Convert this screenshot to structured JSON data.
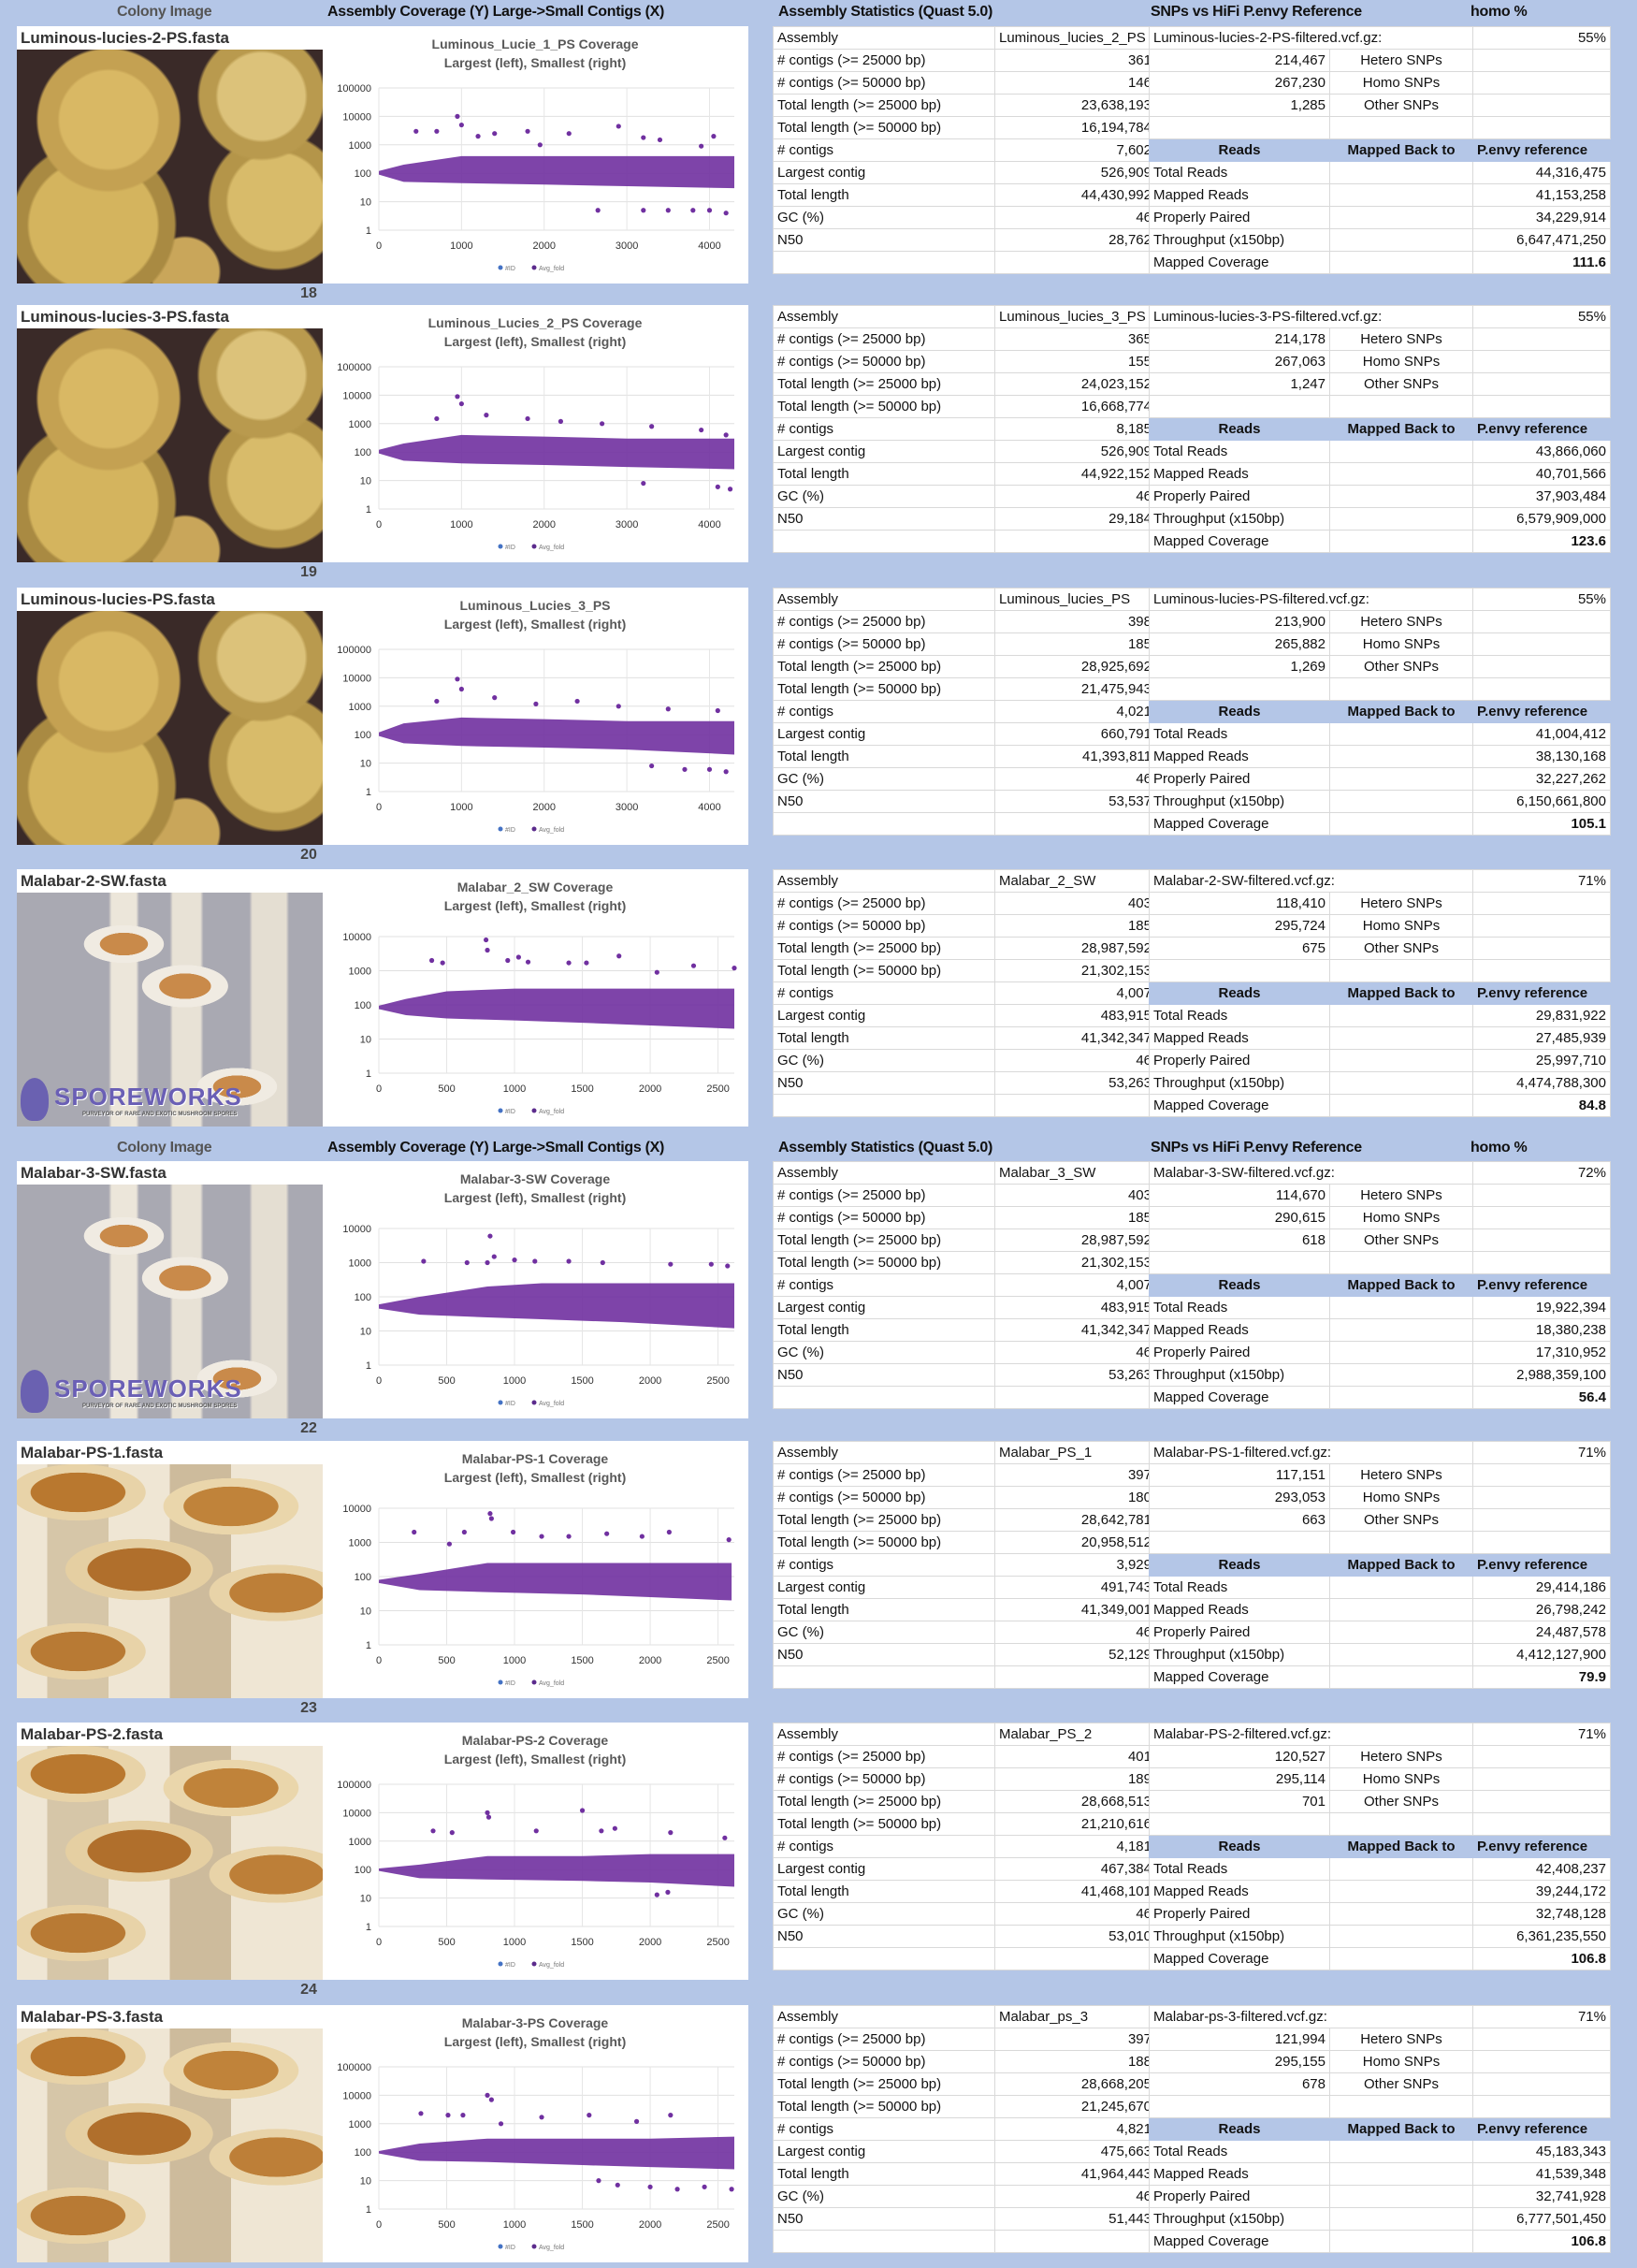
{
  "headers": {
    "colony_image": "Colony Image",
    "assembly_coverage": "Assembly Coverage (Y) Large->Small Contigs (X)",
    "assembly_statistics": "Assembly Statistics (Quast 5.0)",
    "snps_reference": "SNPs vs HiFi P.envy Reference",
    "homo_pct": "homo %"
  },
  "stat_labels": [
    "Assembly",
    "# contigs (>= 25000 bp)",
    "# contigs (>= 50000 bp)",
    "Total length (>= 25000 bp)",
    "Total length (>= 50000 bp)",
    "# contigs",
    "Largest contig",
    "Total length",
    "GC (%)",
    "N50"
  ],
  "snp_labels": {
    "hetero": "Hetero SNPs",
    "homo": "Homo SNPs",
    "other": "Other SNPs"
  },
  "reads_header": [
    "Reads",
    "Mapped Back to",
    "P.envy reference"
  ],
  "reads_labels": [
    "Total Reads",
    "Mapped Reads",
    "Properly Paired",
    "Throughput (x150bp)",
    "Mapped Coverage"
  ],
  "logo_text": {
    "name": "SPOREWORKS",
    "tagline": "PURVEYOR OF RARE AND EXOTIC MUSHROOM SPORES"
  },
  "colors": {
    "background": "#b4c6e7",
    "points": "#7030a0"
  },
  "panels": [
    {
      "file": "Luminous-lucies-2-PS.fasta",
      "photo": "luminous",
      "assembly": "Luminous_lucies_2_PS",
      "stats": [
        "361",
        "146",
        "23,638,193",
        "16,194,784",
        "7,602",
        "526,909",
        "44,430,992",
        "46",
        "28,762"
      ],
      "vcf": "Luminous-lucies-2-PS-filtered.vcf.gz:",
      "homo_pct": "55%",
      "hetero": "214,467",
      "homo": "267,230",
      "other": "1,285",
      "reads": [
        "44,316,475",
        "41,153,258",
        "34,229,914",
        "6,647,471,250",
        "111.6"
      ],
      "number": "18"
    },
    {
      "file": "Luminous-lucies-3-PS.fasta",
      "photo": "luminous",
      "assembly": "Luminous_lucies_3_PS",
      "stats": [
        "365",
        "155",
        "24,023,152",
        "16,668,774",
        "8,185",
        "526,909",
        "44,922,152",
        "46",
        "29,184"
      ],
      "vcf": "Luminous-lucies-3-PS-filtered.vcf.gz:",
      "homo_pct": "55%",
      "hetero": "214,178",
      "homo": "267,063",
      "other": "1,247",
      "reads": [
        "43,866,060",
        "40,701,566",
        "37,903,484",
        "6,579,909,000",
        "123.6"
      ],
      "number": "19"
    },
    {
      "file": "Luminous-lucies-PS.fasta",
      "photo": "luminous",
      "assembly": "Luminous_lucies_PS",
      "stats": [
        "398",
        "185",
        "28,925,692",
        "21,475,943",
        "4,021",
        "660,791",
        "41,393,811",
        "46",
        "53,537"
      ],
      "vcf": "Luminous-lucies-PS-filtered.vcf.gz:",
      "homo_pct": "55%",
      "hetero": "213,900",
      "homo": "265,882",
      "other": "1,269",
      "reads": [
        "41,004,412",
        "38,130,168",
        "32,227,262",
        "6,150,661,800",
        "105.1"
      ],
      "number": "20"
    },
    {
      "file": "Malabar-2-SW.fasta",
      "photo": "malabar-sw",
      "assembly": "Malabar_2_SW",
      "stats": [
        "403",
        "185",
        "28,987,592",
        "21,302,153",
        "4,007",
        "483,915",
        "41,342,347",
        "46",
        "53,263"
      ],
      "vcf": "Malabar-2-SW-filtered.vcf.gz:",
      "homo_pct": "71%",
      "hetero": "118,410",
      "homo": "295,724",
      "other": "675",
      "reads": [
        "29,831,922",
        "27,485,939",
        "25,997,710",
        "4,474,788,300",
        "84.8"
      ],
      "number": ""
    },
    {
      "file": "Malabar-3-SW.fasta",
      "photo": "malabar-sw",
      "assembly": "Malabar_3_SW",
      "stats": [
        "403",
        "185",
        "28,987,592",
        "21,302,153",
        "4,007",
        "483,915",
        "41,342,347",
        "46",
        "53,263"
      ],
      "vcf": "Malabar-3-SW-filtered.vcf.gz:",
      "homo_pct": "72%",
      "hetero": "114,670",
      "homo": "290,615",
      "other": "618",
      "reads": [
        "19,922,394",
        "18,380,238",
        "17,310,952",
        "2,988,359,100",
        "56.4"
      ],
      "number": "22"
    },
    {
      "file": "Malabar-PS-1.fasta",
      "photo": "malabar-ps",
      "assembly": "Malabar_PS_1",
      "stats": [
        "397",
        "180",
        "28,642,781",
        "20,958,512",
        "3,929",
        "491,743",
        "41,349,001",
        "46",
        "52,129"
      ],
      "vcf": "Malabar-PS-1-filtered.vcf.gz:",
      "homo_pct": "71%",
      "hetero": "117,151",
      "homo": "293,053",
      "other": "663",
      "reads": [
        "29,414,186",
        "26,798,242",
        "24,487,578",
        "4,412,127,900",
        "79.9"
      ],
      "number": "23"
    },
    {
      "file": "Malabar-PS-2.fasta",
      "photo": "malabar-ps",
      "assembly": "Malabar_PS_2",
      "stats": [
        "401",
        "189",
        "28,668,513",
        "21,210,616",
        "4,181",
        "467,384",
        "41,468,101",
        "46",
        "53,010"
      ],
      "vcf": "Malabar-PS-2-filtered.vcf.gz:",
      "homo_pct": "71%",
      "hetero": "120,527",
      "homo": "295,114",
      "other": "701",
      "reads": [
        "42,408,237",
        "39,244,172",
        "32,748,128",
        "6,361,235,550",
        "106.8"
      ],
      "number": "24"
    },
    {
      "file": "Malabar-PS-3.fasta",
      "photo": "malabar-ps",
      "assembly": "Malabar_ps_3",
      "stats": [
        "397",
        "188",
        "28,668,205",
        "21,245,670",
        "4,821",
        "475,663",
        "41,964,443",
        "46",
        "51,443"
      ],
      "vcf": "Malabar-ps-3-filtered.vcf.gz:",
      "homo_pct": "71%",
      "hetero": "121,994",
      "homo": "295,155",
      "other": "678",
      "reads": [
        "45,183,343",
        "41,539,348",
        "32,741,928",
        "6,777,501,450",
        "106.8"
      ],
      "number": ""
    }
  ],
  "chart_data": [
    {
      "type": "scatter",
      "title": "Luminous_Lucie_1_PS Coverage",
      "subtitle": "Largest (left), Smallest (right)",
      "yscale": "log",
      "ylim": [
        1,
        100000
      ],
      "yticks": [
        "1",
        "10",
        "100",
        "1000",
        "10000",
        "100000"
      ],
      "xlim": [
        0,
        4300
      ],
      "xticks": [
        "0",
        "1000",
        "2000",
        "3000",
        "4000"
      ],
      "grid": true,
      "legend": [
        "#ID",
        "Avg_fold"
      ],
      "legend_position": "bottom",
      "band": [
        [
          0,
          90,
          120
        ],
        [
          300,
          50,
          200
        ],
        [
          1000,
          45,
          400
        ],
        [
          2000,
          40,
          400
        ],
        [
          3000,
          35,
          400
        ],
        [
          4300,
          30,
          400
        ]
      ],
      "points": [
        [
          450,
          3000
        ],
        [
          700,
          3000
        ],
        [
          950,
          10000
        ],
        [
          1000,
          5000
        ],
        [
          1200,
          2000
        ],
        [
          1400,
          2500
        ],
        [
          1800,
          3000
        ],
        [
          1950,
          1000
        ],
        [
          2300,
          2500
        ],
        [
          2900,
          4500
        ],
        [
          3200,
          1800
        ],
        [
          3400,
          1500
        ],
        [
          3900,
          900
        ],
        [
          4050,
          2000
        ],
        [
          2650,
          5
        ],
        [
          3200,
          5
        ],
        [
          3500,
          5
        ],
        [
          3800,
          5
        ],
        [
          4000,
          5
        ],
        [
          4200,
          4
        ]
      ]
    },
    {
      "type": "scatter",
      "title": "Luminous_Lucies_2_PS Coverage",
      "subtitle": "Largest (left), Smallest (right)",
      "yscale": "log",
      "ylim": [
        1,
        100000
      ],
      "yticks": [
        "1",
        "10",
        "100",
        "1000",
        "10000",
        "100000"
      ],
      "xlim": [
        0,
        4300
      ],
      "xticks": [
        "0",
        "1000",
        "2000",
        "3000",
        "4000"
      ],
      "grid": true,
      "legend": [
        "#ID",
        "Avg_fold"
      ],
      "legend_position": "bottom",
      "band": [
        [
          0,
          90,
          120
        ],
        [
          300,
          50,
          200
        ],
        [
          1000,
          40,
          400
        ],
        [
          2000,
          35,
          350
        ],
        [
          3000,
          30,
          300
        ],
        [
          4300,
          25,
          300
        ]
      ],
      "points": [
        [
          950,
          9000
        ],
        [
          1000,
          5000
        ],
        [
          700,
          1500
        ],
        [
          1300,
          2000
        ],
        [
          1800,
          1500
        ],
        [
          2200,
          1200
        ],
        [
          2700,
          1000
        ],
        [
          3300,
          800
        ],
        [
          3900,
          600
        ],
        [
          4200,
          400
        ],
        [
          3200,
          8
        ],
        [
          4100,
          6
        ],
        [
          4250,
          5
        ]
      ]
    },
    {
      "type": "scatter",
      "title": "Luminous_Lucies_3_PS",
      "subtitle": "Largest (left), Smallest (right)",
      "yscale": "log",
      "ylim": [
        1,
        100000
      ],
      "yticks": [
        "1",
        "10",
        "100",
        "1000",
        "10000",
        "100000"
      ],
      "xlim": [
        0,
        4300
      ],
      "xticks": [
        "0",
        "1000",
        "2000",
        "3000",
        "4000"
      ],
      "grid": true,
      "legend": [
        "#ID",
        "Avg_fold"
      ],
      "legend_position": "bottom",
      "band": [
        [
          0,
          90,
          120
        ],
        [
          300,
          50,
          250
        ],
        [
          1000,
          40,
          400
        ],
        [
          2000,
          35,
          350
        ],
        [
          3000,
          30,
          300
        ],
        [
          4300,
          20,
          300
        ]
      ],
      "points": [
        [
          950,
          9000
        ],
        [
          1000,
          4000
        ],
        [
          700,
          1500
        ],
        [
          1400,
          2000
        ],
        [
          1900,
          1200
        ],
        [
          2400,
          1500
        ],
        [
          2900,
          1000
        ],
        [
          3500,
          800
        ],
        [
          4100,
          700
        ],
        [
          3300,
          8
        ],
        [
          3700,
          6
        ],
        [
          4000,
          6
        ],
        [
          4200,
          5
        ]
      ]
    },
    {
      "type": "scatter",
      "title": "Malabar_2_SW Coverage",
      "subtitle": "Largest (left), Smallest (right)",
      "yscale": "log",
      "ylim": [
        1,
        10000
      ],
      "yticks": [
        "1",
        "10",
        "100",
        "1000",
        "10000"
      ],
      "xlim": [
        0,
        2620
      ],
      "xticks": [
        "0",
        "500",
        "1000",
        "1500",
        "2000",
        "2500"
      ],
      "grid": true,
      "legend": [
        "#ID",
        "Avg_fold"
      ],
      "legend_position": "bottom",
      "band": [
        [
          0,
          75,
          95
        ],
        [
          200,
          50,
          150
        ],
        [
          500,
          40,
          250
        ],
        [
          1000,
          35,
          300
        ],
        [
          1500,
          30,
          300
        ],
        [
          2000,
          25,
          300
        ],
        [
          2620,
          20,
          300
        ]
      ],
      "points": [
        [
          390,
          2000
        ],
        [
          470,
          1700
        ],
        [
          790,
          8000
        ],
        [
          800,
          4000
        ],
        [
          950,
          2000
        ],
        [
          1030,
          2500
        ],
        [
          1100,
          1800
        ],
        [
          1400,
          1700
        ],
        [
          1530,
          1700
        ],
        [
          1770,
          2700
        ],
        [
          2050,
          900
        ],
        [
          2320,
          1400
        ],
        [
          2620,
          1200
        ]
      ]
    },
    {
      "type": "scatter",
      "title": "Malabar-3-SW Coverage",
      "subtitle": "Largest (left), Smallest (right)",
      "yscale": "log",
      "ylim": [
        1,
        10000
      ],
      "yticks": [
        "1",
        "10",
        "100",
        "1000",
        "10000"
      ],
      "xlim": [
        0,
        2620
      ],
      "xticks": [
        "0",
        "500",
        "1000",
        "1500",
        "2000",
        "2500"
      ],
      "grid": true,
      "legend": [
        "#ID",
        "Avg_fold"
      ],
      "legend_position": "bottom",
      "band": [
        [
          0,
          45,
          60
        ],
        [
          300,
          30,
          100
        ],
        [
          800,
          25,
          200
        ],
        [
          1200,
          22,
          250
        ],
        [
          1800,
          18,
          250
        ],
        [
          2620,
          12,
          250
        ]
      ],
      "points": [
        [
          330,
          1100
        ],
        [
          650,
          1000
        ],
        [
          800,
          1000
        ],
        [
          820,
          6000
        ],
        [
          850,
          1500
        ],
        [
          1000,
          1200
        ],
        [
          1150,
          1100
        ],
        [
          1400,
          1100
        ],
        [
          1650,
          1000
        ],
        [
          2150,
          900
        ],
        [
          2450,
          900
        ],
        [
          2570,
          800
        ]
      ]
    },
    {
      "type": "scatter",
      "title": "Malabar-PS-1 Coverage",
      "subtitle": "Largest (left), Smallest (right)",
      "yscale": "log",
      "ylim": [
        1,
        10000
      ],
      "yticks": [
        "1",
        "10",
        "100",
        "1000",
        "10000"
      ],
      "xlim": [
        0,
        2620
      ],
      "xticks": [
        "0",
        "500",
        "1000",
        "1500",
        "2000",
        "2500"
      ],
      "grid": true,
      "legend": [
        "#ID",
        "Avg_fold"
      ],
      "legend_position": "bottom",
      "band": [
        [
          0,
          65,
          80
        ],
        [
          300,
          40,
          120
        ],
        [
          800,
          35,
          250
        ],
        [
          1500,
          30,
          250
        ],
        [
          2000,
          25,
          250
        ],
        [
          2600,
          20,
          250
        ]
      ],
      "points": [
        [
          260,
          2000
        ],
        [
          520,
          900
        ],
        [
          630,
          2000
        ],
        [
          820,
          7000
        ],
        [
          830,
          5000
        ],
        [
          990,
          2000
        ],
        [
          1200,
          1500
        ],
        [
          1400,
          1500
        ],
        [
          1680,
          1800
        ],
        [
          1940,
          1500
        ],
        [
          2140,
          2000
        ],
        [
          2580,
          1200
        ]
      ]
    },
    {
      "type": "scatter",
      "title": "Malabar-PS-2 Coverage",
      "subtitle": "Largest (left), Smallest (right)",
      "yscale": "log",
      "ylim": [
        1,
        100000
      ],
      "yticks": [
        "1",
        "10",
        "100",
        "1000",
        "10000",
        "100000"
      ],
      "xlim": [
        0,
        2620
      ],
      "xticks": [
        "0",
        "500",
        "1000",
        "1500",
        "2000",
        "2500"
      ],
      "grid": true,
      "legend": [
        "#ID",
        "Avg_fold"
      ],
      "legend_position": "bottom",
      "band": [
        [
          0,
          90,
          110
        ],
        [
          300,
          50,
          150
        ],
        [
          800,
          45,
          300
        ],
        [
          1500,
          40,
          300
        ],
        [
          2000,
          35,
          350
        ],
        [
          2620,
          25,
          350
        ]
      ],
      "points": [
        [
          400,
          2300
        ],
        [
          540,
          2000
        ],
        [
          800,
          10000
        ],
        [
          810,
          7000
        ],
        [
          1160,
          2300
        ],
        [
          1500,
          12000
        ],
        [
          1640,
          2300
        ],
        [
          1740,
          2800
        ],
        [
          2150,
          2000
        ],
        [
          2550,
          1300
        ],
        [
          2050,
          13
        ],
        [
          2130,
          16
        ]
      ]
    },
    {
      "type": "scatter",
      "title": "Malabar-3-PS Coverage",
      "subtitle": "Largest (left), Smallest (right)",
      "yscale": "log",
      "ylim": [
        1,
        100000
      ],
      "yticks": [
        "1",
        "10",
        "100",
        "1000",
        "10000",
        "100000"
      ],
      "xlim": [
        0,
        2620
      ],
      "xticks": [
        "0",
        "500",
        "1000",
        "1500",
        "2000",
        "2500"
      ],
      "grid": true,
      "legend": [
        "#ID",
        "Avg_fold"
      ],
      "legend_position": "bottom",
      "band": [
        [
          0,
          90,
          110
        ],
        [
          300,
          50,
          200
        ],
        [
          800,
          45,
          300
        ],
        [
          1500,
          35,
          300
        ],
        [
          2000,
          30,
          300
        ],
        [
          2620,
          25,
          350
        ]
      ],
      "points": [
        [
          310,
          2300
        ],
        [
          510,
          2000
        ],
        [
          620,
          2000
        ],
        [
          800,
          10000
        ],
        [
          830,
          7000
        ],
        [
          900,
          1000
        ],
        [
          1200,
          1700
        ],
        [
          1550,
          2000
        ],
        [
          1900,
          1200
        ],
        [
          2150,
          2000
        ],
        [
          1620,
          10
        ],
        [
          1760,
          7
        ],
        [
          2000,
          6
        ],
        [
          2200,
          5
        ],
        [
          2400,
          6
        ],
        [
          2600,
          5
        ]
      ]
    }
  ]
}
